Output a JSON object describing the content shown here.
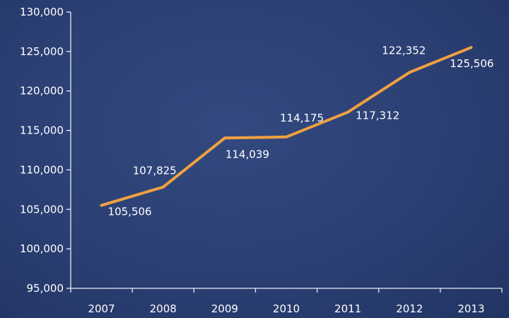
{
  "chart_data": {
    "type": "line",
    "title": "",
    "xlabel": "",
    "ylabel": "",
    "categories": [
      "2007",
      "2008",
      "2009",
      "2010",
      "2011",
      "2012",
      "2013"
    ],
    "series": [
      {
        "values": [
          105506,
          107825,
          114039,
          114175,
          117312,
          122352,
          125506
        ],
        "data_labels": [
          "105,506",
          "107,825",
          "114,039",
          "114,175",
          "117,312",
          "122,352",
          "125,506"
        ]
      }
    ],
    "ylim": [
      95000,
      130000
    ],
    "yticks": [
      95000,
      100000,
      105000,
      110000,
      115000,
      120000,
      125000,
      130000
    ],
    "ytick_labels": [
      "95,000",
      "100,000",
      "105,000",
      "110,000",
      "115,000",
      "120,000",
      "125,000",
      "130,000"
    ],
    "grid": false,
    "legend": "none",
    "colors": {
      "background": "#2b3f73",
      "line": "#f0a040",
      "axis": "#e8ecf5",
      "text": "#ffffff"
    }
  }
}
